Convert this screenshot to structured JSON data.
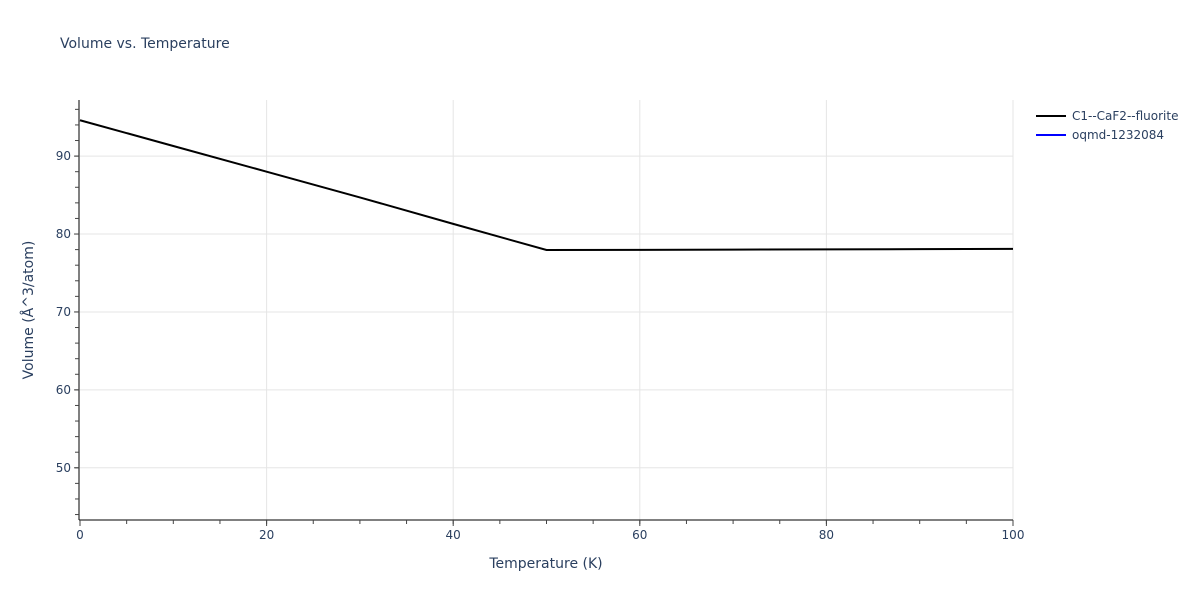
{
  "title": "Volume vs. Temperature",
  "xaxis": {
    "title": "Temperature (K)",
    "range": [
      0,
      100
    ],
    "ticks": [
      0,
      20,
      40,
      60,
      80,
      100
    ],
    "minor_step": 5
  },
  "yaxis": {
    "title": "Volume (Å^3/atom)",
    "range": [
      43.3,
      97.2
    ],
    "ticks": [
      50,
      60,
      70,
      80,
      90
    ],
    "minor_step": 2
  },
  "legend": [
    {
      "name": "C1--CaF2--fluorite",
      "color": "#000000"
    },
    {
      "name": "oqmd-1232084",
      "color": "#0000ff"
    }
  ],
  "chart_data": {
    "type": "line",
    "title": "Volume vs. Temperature",
    "xlabel": "Temperature (K)",
    "ylabel": "Volume (Å^3/atom)",
    "xlim": [
      0,
      100
    ],
    "ylim": [
      43.3,
      97.2
    ],
    "grid": true,
    "legend_position": "right-top",
    "series": [
      {
        "name": "C1--CaF2--fluorite",
        "color": "#000000",
        "x": [
          0,
          10,
          20,
          30,
          40,
          50,
          60,
          70,
          80,
          90,
          100
        ],
        "y": [
          94.6,
          91.3,
          88.0,
          84.7,
          81.3,
          77.95,
          77.97,
          78.0,
          78.03,
          78.06,
          78.1
        ]
      },
      {
        "name": "oqmd-1232084",
        "color": "#0000ff",
        "x": [],
        "y": []
      }
    ]
  }
}
